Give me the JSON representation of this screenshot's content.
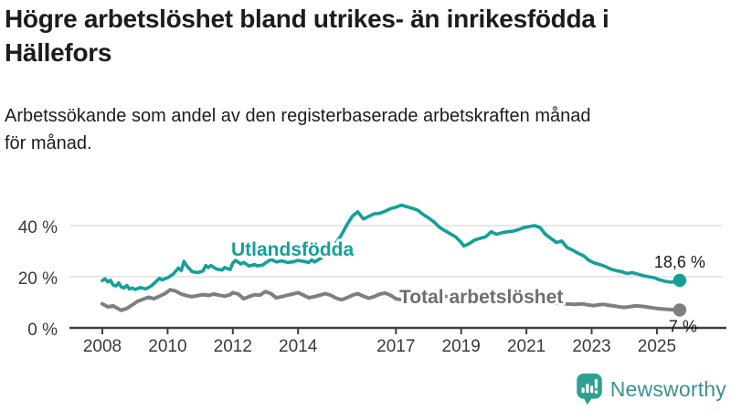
{
  "header": {
    "title": "Högre arbetslöshet bland utrikes- än inrikesfödda i\nHällefors",
    "subtitle": "Arbetssökande som andel av den registerbaserade arbetskraften månad\nför månad."
  },
  "chart_data": {
    "type": "line",
    "title": "Högre arbetslöshet bland utrikes- än inrikesfödda i Hällefors",
    "subtitle": "Arbetssökande som andel av den registerbaserade arbetskraften månad för månad.",
    "unit": "%",
    "grid": "horizontal",
    "legend": "inline-labels",
    "xlim": [
      2008,
      2025.7
    ],
    "ylim": [
      0,
      50
    ],
    "x_ticks": [
      2008,
      2010,
      2012,
      2014,
      2017,
      2019,
      2021,
      2023,
      2025
    ],
    "y_ticks": [
      {
        "pct": 0,
        "label": "0 %"
      },
      {
        "pct": 20,
        "label": "20 %"
      },
      {
        "pct": 40,
        "label": "40 %"
      }
    ],
    "series": [
      {
        "name": "Utlandsfödda",
        "color": "#14a098",
        "end_label": "18,6 %",
        "end_value": 18.6,
        "points": [
          [
            2008.0,
            18.5
          ],
          [
            2008.08,
            19.2
          ],
          [
            2008.17,
            18.0
          ],
          [
            2008.25,
            18.6
          ],
          [
            2008.33,
            16.8
          ],
          [
            2008.42,
            16.4
          ],
          [
            2008.5,
            17.6
          ],
          [
            2008.58,
            16.0
          ],
          [
            2008.67,
            15.6
          ],
          [
            2008.75,
            16.6
          ],
          [
            2008.83,
            15.2
          ],
          [
            2008.92,
            15.6
          ],
          [
            2009.0,
            15.0
          ],
          [
            2009.17,
            15.8
          ],
          [
            2009.33,
            15.2
          ],
          [
            2009.5,
            16.4
          ],
          [
            2009.67,
            18.4
          ],
          [
            2009.75,
            19.4
          ],
          [
            2009.83,
            18.8
          ],
          [
            2010.0,
            19.6
          ],
          [
            2010.17,
            21.0
          ],
          [
            2010.33,
            23.4
          ],
          [
            2010.42,
            22.4
          ],
          [
            2010.5,
            26.0
          ],
          [
            2010.58,
            24.4
          ],
          [
            2010.75,
            22.0
          ],
          [
            2010.92,
            21.6
          ],
          [
            2011.08,
            22.2
          ],
          [
            2011.17,
            24.4
          ],
          [
            2011.25,
            23.6
          ],
          [
            2011.33,
            24.4
          ],
          [
            2011.5,
            23.0
          ],
          [
            2011.67,
            22.6
          ],
          [
            2011.75,
            23.6
          ],
          [
            2011.92,
            22.8
          ],
          [
            2012.0,
            25.4
          ],
          [
            2012.08,
            26.4
          ],
          [
            2012.25,
            25.0
          ],
          [
            2012.33,
            25.6
          ],
          [
            2012.5,
            24.2
          ],
          [
            2012.67,
            24.8
          ],
          [
            2012.75,
            24.2
          ],
          [
            2012.92,
            24.6
          ],
          [
            2013.0,
            25.4
          ],
          [
            2013.17,
            26.8
          ],
          [
            2013.33,
            25.8
          ],
          [
            2013.5,
            26.2
          ],
          [
            2013.67,
            25.6
          ],
          [
            2013.83,
            25.8
          ],
          [
            2014.0,
            26.4
          ],
          [
            2014.17,
            26.0
          ],
          [
            2014.33,
            25.6
          ],
          [
            2014.42,
            26.6
          ],
          [
            2014.5,
            25.8
          ],
          [
            2014.67,
            27.0
          ],
          [
            2014.83,
            28.2
          ],
          [
            2015.0,
            30.4
          ],
          [
            2015.17,
            33.4
          ],
          [
            2015.33,
            36.4
          ],
          [
            2015.5,
            40.4
          ],
          [
            2015.67,
            43.8
          ],
          [
            2015.83,
            45.4
          ],
          [
            2016.0,
            42.6
          ],
          [
            2016.17,
            43.6
          ],
          [
            2016.33,
            44.6
          ],
          [
            2016.5,
            44.8
          ],
          [
            2016.67,
            45.6
          ],
          [
            2016.83,
            46.6
          ],
          [
            2017.0,
            47.2
          ],
          [
            2017.17,
            48.0
          ],
          [
            2017.33,
            47.4
          ],
          [
            2017.5,
            46.8
          ],
          [
            2017.67,
            46.0
          ],
          [
            2017.83,
            44.4
          ],
          [
            2018.0,
            43.0
          ],
          [
            2018.17,
            41.4
          ],
          [
            2018.33,
            39.4
          ],
          [
            2018.5,
            38.0
          ],
          [
            2018.67,
            36.8
          ],
          [
            2018.83,
            35.6
          ],
          [
            2019.0,
            33.4
          ],
          [
            2019.08,
            32.0
          ],
          [
            2019.25,
            33.0
          ],
          [
            2019.42,
            34.4
          ],
          [
            2019.58,
            35.0
          ],
          [
            2019.75,
            35.6
          ],
          [
            2019.92,
            37.6
          ],
          [
            2020.08,
            36.6
          ],
          [
            2020.25,
            37.2
          ],
          [
            2020.42,
            37.6
          ],
          [
            2020.58,
            37.8
          ],
          [
            2020.75,
            38.4
          ],
          [
            2020.92,
            39.2
          ],
          [
            2021.08,
            39.6
          ],
          [
            2021.25,
            40.0
          ],
          [
            2021.42,
            39.2
          ],
          [
            2021.58,
            36.6
          ],
          [
            2021.75,
            35.0
          ],
          [
            2021.92,
            33.4
          ],
          [
            2022.08,
            34.0
          ],
          [
            2022.25,
            31.4
          ],
          [
            2022.42,
            30.4
          ],
          [
            2022.58,
            29.2
          ],
          [
            2022.75,
            28.2
          ],
          [
            2022.92,
            26.4
          ],
          [
            2023.08,
            25.4
          ],
          [
            2023.25,
            24.8
          ],
          [
            2023.42,
            24.0
          ],
          [
            2023.58,
            23.0
          ],
          [
            2023.75,
            22.4
          ],
          [
            2023.92,
            22.0
          ],
          [
            2024.08,
            21.3
          ],
          [
            2024.25,
            21.6
          ],
          [
            2024.42,
            21.0
          ],
          [
            2024.58,
            20.4
          ],
          [
            2024.75,
            20.0
          ],
          [
            2024.92,
            19.6
          ],
          [
            2025.08,
            18.8
          ],
          [
            2025.25,
            18.2
          ],
          [
            2025.42,
            17.9
          ],
          [
            2025.55,
            18.0
          ],
          [
            2025.7,
            18.6
          ]
        ]
      },
      {
        "name": "Total arbetslöshet",
        "color": "#7f7f7f",
        "end_label": "7 %",
        "end_value": 7.0,
        "points": [
          [
            2008.0,
            9.4
          ],
          [
            2008.17,
            8.2
          ],
          [
            2008.33,
            8.6
          ],
          [
            2008.5,
            7.4
          ],
          [
            2008.58,
            6.9
          ],
          [
            2008.75,
            7.6
          ],
          [
            2008.92,
            9.0
          ],
          [
            2009.08,
            10.4
          ],
          [
            2009.25,
            11.2
          ],
          [
            2009.42,
            12.0
          ],
          [
            2009.58,
            11.4
          ],
          [
            2009.75,
            12.4
          ],
          [
            2009.92,
            13.4
          ],
          [
            2010.08,
            14.9
          ],
          [
            2010.25,
            14.4
          ],
          [
            2010.42,
            13.2
          ],
          [
            2010.58,
            12.6
          ],
          [
            2010.75,
            12.2
          ],
          [
            2010.92,
            12.6
          ],
          [
            2011.08,
            13.0
          ],
          [
            2011.25,
            12.7
          ],
          [
            2011.42,
            13.2
          ],
          [
            2011.58,
            12.8
          ],
          [
            2011.75,
            12.4
          ],
          [
            2011.92,
            13.0
          ],
          [
            2012.0,
            13.8
          ],
          [
            2012.17,
            13.2
          ],
          [
            2012.33,
            11.4
          ],
          [
            2012.5,
            12.2
          ],
          [
            2012.67,
            13.0
          ],
          [
            2012.83,
            12.8
          ],
          [
            2013.0,
            14.2
          ],
          [
            2013.17,
            13.4
          ],
          [
            2013.33,
            11.8
          ],
          [
            2013.5,
            12.2
          ],
          [
            2013.67,
            12.8
          ],
          [
            2013.83,
            13.2
          ],
          [
            2014.0,
            13.8
          ],
          [
            2014.17,
            12.8
          ],
          [
            2014.33,
            11.8
          ],
          [
            2014.5,
            12.2
          ],
          [
            2014.67,
            12.8
          ],
          [
            2014.83,
            13.4
          ],
          [
            2015.0,
            12.8
          ],
          [
            2015.17,
            11.6
          ],
          [
            2015.33,
            11.0
          ],
          [
            2015.5,
            11.8
          ],
          [
            2015.67,
            12.8
          ],
          [
            2015.83,
            13.4
          ],
          [
            2016.0,
            12.4
          ],
          [
            2016.17,
            11.6
          ],
          [
            2016.33,
            12.2
          ],
          [
            2016.5,
            13.2
          ],
          [
            2016.67,
            13.6
          ],
          [
            2016.83,
            12.8
          ],
          [
            2017.0,
            11.4
          ],
          [
            2017.17,
            11.0
          ],
          [
            2017.33,
            11.8
          ],
          [
            2017.5,
            12.4
          ],
          [
            2017.67,
            13.0
          ],
          [
            2017.83,
            12.6
          ],
          [
            2018.0,
            12.2
          ],
          [
            2018.25,
            11.8
          ],
          [
            2018.5,
            12.4
          ],
          [
            2018.75,
            12.0
          ],
          [
            2019.0,
            11.6
          ],
          [
            2019.25,
            11.0
          ],
          [
            2019.5,
            10.8
          ],
          [
            2019.75,
            10.9
          ],
          [
            2020.0,
            11.2
          ],
          [
            2020.25,
            11.8
          ],
          [
            2020.5,
            12.0
          ],
          [
            2020.75,
            11.4
          ],
          [
            2021.0,
            11.0
          ],
          [
            2021.25,
            10.4
          ],
          [
            2021.5,
            10.0
          ],
          [
            2021.75,
            9.8
          ],
          [
            2022.0,
            9.6
          ],
          [
            2022.25,
            9.4
          ],
          [
            2022.5,
            9.2
          ],
          [
            2022.7,
            9.4
          ],
          [
            2022.9,
            9.0
          ],
          [
            2023.05,
            8.7
          ],
          [
            2023.2,
            9.0
          ],
          [
            2023.35,
            9.2
          ],
          [
            2023.5,
            8.9
          ],
          [
            2023.67,
            8.6
          ],
          [
            2023.83,
            8.3
          ],
          [
            2024.0,
            8.0
          ],
          [
            2024.17,
            8.3
          ],
          [
            2024.33,
            8.6
          ],
          [
            2024.5,
            8.5
          ],
          [
            2024.67,
            8.2
          ],
          [
            2024.83,
            7.9
          ],
          [
            2025.0,
            7.6
          ],
          [
            2025.17,
            7.4
          ],
          [
            2025.33,
            7.2
          ],
          [
            2025.5,
            7.1
          ],
          [
            2025.7,
            7.0
          ]
        ]
      }
    ]
  },
  "footer": {
    "brand": "Newsworthy",
    "brand_icon": "newsworthy-bar-chart-bubble-icon",
    "brand_color": "#2da08f",
    "brand_text_color": "#3b9094"
  }
}
